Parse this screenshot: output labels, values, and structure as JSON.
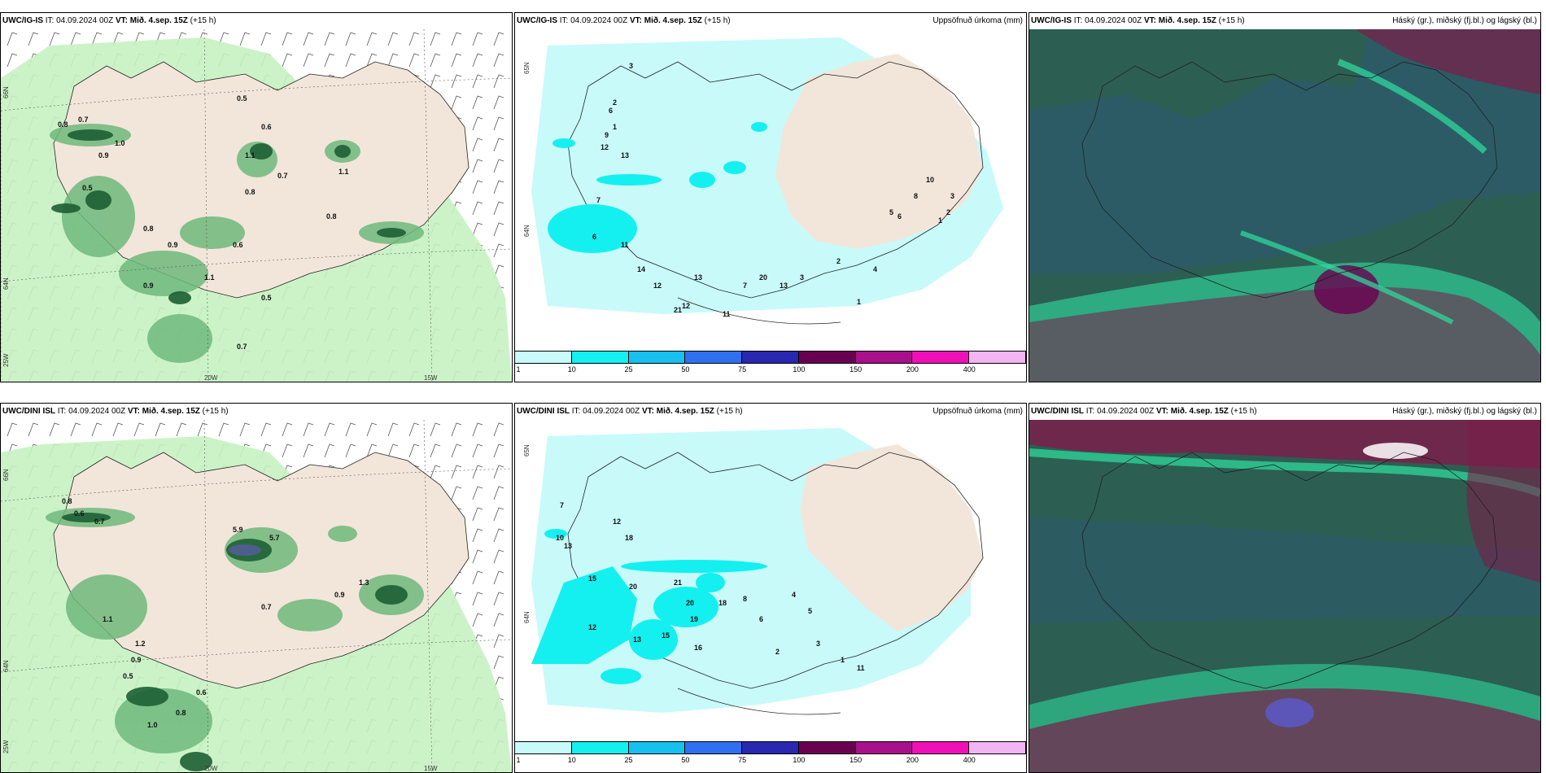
{
  "panels": [
    {
      "id": "p1",
      "model": "UWC/IG-IS",
      "it": "IT: 04.09.2024 00Z",
      "vt": "VT: Mið. 4.sep. 15Z",
      "lead": "(+15 h)",
      "right_title": "",
      "lon_labels": [
        "20W",
        "15W"
      ],
      "lat_labels": [
        "66N",
        "64N"
      ],
      "edge_labels": [
        "25W"
      ]
    },
    {
      "id": "p2",
      "model": "UWC/IG-IS",
      "it": "IT: 04.09.2024 00Z",
      "vt": "VT: Mið. 4.sep. 15Z",
      "lead": "(+15 h)",
      "right_title": "Uppsöfnuð úrkoma (mm)",
      "lat_labels": [
        "65N",
        "64N"
      ]
    },
    {
      "id": "p3",
      "model": "UWC/IG-IS",
      "it": "IT: 04.09.2024 00Z",
      "vt": "VT: Mið. 4.sep. 15Z",
      "lead": "(+15 h)",
      "right_title": "Háský (gr.), miðský (fj.bl.) og lágský (bl.)"
    },
    {
      "id": "p4",
      "model": "UWC/DINI ISL",
      "it": "IT: 04.09.2024 00Z",
      "vt": "VT: Mið. 4.sep. 15Z",
      "lead": "(+15 h)",
      "right_title": "",
      "lon_labels": [
        "20W",
        "15W"
      ],
      "lat_labels": [
        "66N",
        "64N"
      ],
      "edge_labels": [
        "25W"
      ]
    },
    {
      "id": "p5",
      "model": "UWC/DINI ISL",
      "it": "IT: 04.09.2024 00Z",
      "vt": "VT: Mið. 4.sep. 15Z",
      "lead": "(+15 h)",
      "right_title": "Uppsöfnuð úrkoma (mm)",
      "lat_labels": [
        "65N",
        "64N"
      ]
    },
    {
      "id": "p6",
      "model": "UWC/DINI ISL",
      "it": "IT: 04.09.2024 00Z",
      "vt": "VT: Mið. 4.sep. 15Z",
      "lead": "(+15 h)",
      "right_title": "Háský (gr.), miðský (fj.bl.) og lágský (bl.)"
    }
  ],
  "colorbar": {
    "ticks": [
      "1",
      "10",
      "25",
      "50",
      "75",
      "100",
      "150",
      "200",
      "400"
    ],
    "colors": [
      "#c8fafa",
      "#14f0f0",
      "#18c0f0",
      "#3070f0",
      "#2828b0",
      "#6a0050",
      "#a8108c",
      "#f010b8",
      "#f2b4f2"
    ]
  },
  "precip_labels_top": [
    "0.5",
    "0.6",
    "0.8",
    "0.7",
    "1.0",
    "0.9",
    "1.1",
    "0.5",
    "0.8",
    "0.7",
    "1.1",
    "0.8",
    "0.9",
    "0.6",
    "0.8",
    "1.1",
    "0.9",
    "0.5",
    "0.7"
  ],
  "accum_labels_top": [
    "3",
    "2",
    "6",
    "1",
    "9",
    "12",
    "13",
    "7",
    "6",
    "11",
    "14",
    "12",
    "21",
    "12",
    "13",
    "11",
    "7",
    "20",
    "13",
    "3",
    "2",
    "1",
    "4",
    "5",
    "6",
    "8",
    "10",
    "1",
    "2",
    "3"
  ],
  "precip_labels_bottom": [
    "0.8",
    "0.6",
    "0.7",
    "5.9",
    "5.7",
    "1.2",
    "0.9",
    "1.1",
    "0.5",
    "1.0",
    "0.8",
    "0.6",
    "0.7",
    "0.9",
    "1.3"
  ],
  "accum_labels_bottom": [
    "7",
    "10",
    "13",
    "12",
    "18",
    "15",
    "20",
    "21",
    "12",
    "13",
    "15",
    "16",
    "19",
    "20",
    "18",
    "8",
    "6",
    "4",
    "5",
    "3",
    "2",
    "1",
    "11"
  ],
  "colors": {
    "land": "#f2e6da",
    "light_precip": "#c7f2c1",
    "mid_precip": "#6fb97c",
    "heavy_precip": "#1d5f34",
    "accum_bg": "#c8fafa",
    "accum_mid": "#14f0f0",
    "cloud_base": "#2d5e52",
    "cloud_teal": "#2ee0a0",
    "cloud_magenta": "#7a1e4a"
  }
}
